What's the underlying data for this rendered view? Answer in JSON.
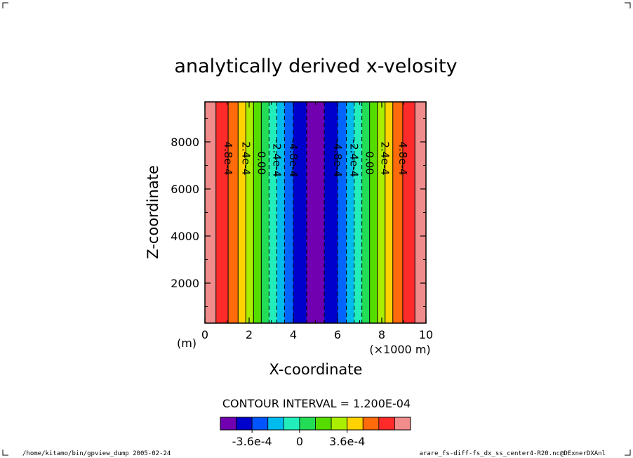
{
  "chart_data": {
    "type": "heatmap",
    "title": "analytically derived x-velosity",
    "xlabel": "X-coordinate",
    "ylabel": "Z-coordinate",
    "x_unit_left": "(m)",
    "x_unit_right": "(×1000 m)",
    "xlim": [
      0,
      10
    ],
    "ylim": [
      300,
      9700
    ],
    "x_ticks": [
      {
        "value": 0,
        "label": "0"
      },
      {
        "value": 2,
        "label": "2"
      },
      {
        "value": 4,
        "label": "4"
      },
      {
        "value": 6,
        "label": "6"
      },
      {
        "value": 8,
        "label": "8"
      },
      {
        "value": 10,
        "label": "10"
      }
    ],
    "y_ticks": [
      {
        "value": 2000,
        "label": "2000"
      },
      {
        "value": 4000,
        "label": "4000"
      },
      {
        "value": 6000,
        "label": "6000"
      },
      {
        "value": 8000,
        "label": "8000"
      }
    ],
    "contour_interval_text": "CONTOUR INTERVAL = 1.200E-04",
    "bands": [
      {
        "x0": 0.0,
        "x1": 0.5,
        "color": "#f08c8c"
      },
      {
        "x0": 0.5,
        "x1": 1.05,
        "color": "#ff2a2a"
      },
      {
        "x0": 1.05,
        "x1": 1.5,
        "color": "#ff6a0a"
      },
      {
        "x0": 1.5,
        "x1": 1.85,
        "color": "#ffd200"
      },
      {
        "x0": 1.85,
        "x1": 2.2,
        "color": "#aaee00"
      },
      {
        "x0": 2.2,
        "x1": 2.55,
        "color": "#55dd00"
      },
      {
        "x0": 2.55,
        "x1": 2.9,
        "color": "#22dd55"
      },
      {
        "x0": 2.9,
        "x1": 3.25,
        "color": "#22eebb"
      },
      {
        "x0": 3.25,
        "x1": 3.6,
        "color": "#00bbee"
      },
      {
        "x0": 3.6,
        "x1": 4.0,
        "color": "#0066ff"
      },
      {
        "x0": 4.0,
        "x1": 4.6,
        "color": "#0000cc"
      },
      {
        "x0": 4.6,
        "x1": 5.4,
        "color": "#7000b0"
      },
      {
        "x0": 5.4,
        "x1": 6.0,
        "color": "#0000cc"
      },
      {
        "x0": 6.0,
        "x1": 6.4,
        "color": "#0066ff"
      },
      {
        "x0": 6.4,
        "x1": 6.75,
        "color": "#00bbee"
      },
      {
        "x0": 6.75,
        "x1": 7.1,
        "color": "#22eebb"
      },
      {
        "x0": 7.1,
        "x1": 7.45,
        "color": "#22dd55"
      },
      {
        "x0": 7.45,
        "x1": 7.8,
        "color": "#55dd00"
      },
      {
        "x0": 7.8,
        "x1": 8.15,
        "color": "#aaee00"
      },
      {
        "x0": 8.15,
        "x1": 8.5,
        "color": "#ffd200"
      },
      {
        "x0": 8.5,
        "x1": 8.95,
        "color": "#ff6a0a"
      },
      {
        "x0": 8.95,
        "x1": 9.5,
        "color": "#ff2a2a"
      },
      {
        "x0": 9.5,
        "x1": 10.0,
        "color": "#f08c8c"
      }
    ],
    "contours": [
      {
        "x": 0.5,
        "dashed": false
      },
      {
        "x": 1.05,
        "dashed": false
      },
      {
        "x": 1.5,
        "dashed": false
      },
      {
        "x": 1.85,
        "dashed": false
      },
      {
        "x": 2.2,
        "dashed": false
      },
      {
        "x": 2.55,
        "dashed": false
      },
      {
        "x": 2.9,
        "dashed": true
      },
      {
        "x": 3.25,
        "dashed": true
      },
      {
        "x": 3.6,
        "dashed": true
      },
      {
        "x": 4.0,
        "dashed": true
      },
      {
        "x": 4.6,
        "dashed": true
      },
      {
        "x": 5.4,
        "dashed": true
      },
      {
        "x": 6.0,
        "dashed": true
      },
      {
        "x": 6.4,
        "dashed": true
      },
      {
        "x": 6.75,
        "dashed": true
      },
      {
        "x": 7.1,
        "dashed": true
      },
      {
        "x": 7.45,
        "dashed": false
      },
      {
        "x": 7.8,
        "dashed": false
      },
      {
        "x": 8.15,
        "dashed": false
      },
      {
        "x": 8.5,
        "dashed": false
      },
      {
        "x": 8.95,
        "dashed": false
      },
      {
        "x": 9.5,
        "dashed": false
      }
    ],
    "contour_labels": [
      {
        "x": 1.05,
        "z": 7300,
        "text": "4.8e-4"
      },
      {
        "x": 1.85,
        "z": 7300,
        "text": "2.4e-4"
      },
      {
        "x": 2.55,
        "z": 7100,
        "text": "0.00"
      },
      {
        "x": 3.25,
        "z": 7300,
        "text": "-2.4e-4"
      },
      {
        "x": 4.0,
        "z": 7300,
        "text": "-4.8e-4"
      },
      {
        "x": 6.0,
        "z": 7300,
        "text": "-4.8e-4"
      },
      {
        "x": 6.75,
        "z": 7300,
        "text": "-2.4e-4"
      },
      {
        "x": 7.45,
        "z": 7100,
        "text": "0.00"
      },
      {
        "x": 8.15,
        "z": 7300,
        "text": "2.4e-4"
      },
      {
        "x": 8.95,
        "z": 7300,
        "text": "4.8e-4"
      }
    ],
    "colorbar": {
      "colors": [
        "#7000b0",
        "#0000cc",
        "#0055ff",
        "#00bbee",
        "#22eebb",
        "#22dd55",
        "#55dd00",
        "#aaee00",
        "#ffd200",
        "#ff6a0a",
        "#ff2a2a",
        "#f08c8c"
      ],
      "labels": [
        {
          "index": 2,
          "text": "-3.6e-4"
        },
        {
          "index": 5,
          "text": "0"
        },
        {
          "index": 8,
          "text": "3.6e-4"
        }
      ]
    }
  },
  "footer": {
    "left": "/home/kitamo/bin/gpview_dump  2005-02-24",
    "right": "arare_fs-diff-fs_dx_ss_center4-R20.nc@DExnerDXAnl"
  }
}
